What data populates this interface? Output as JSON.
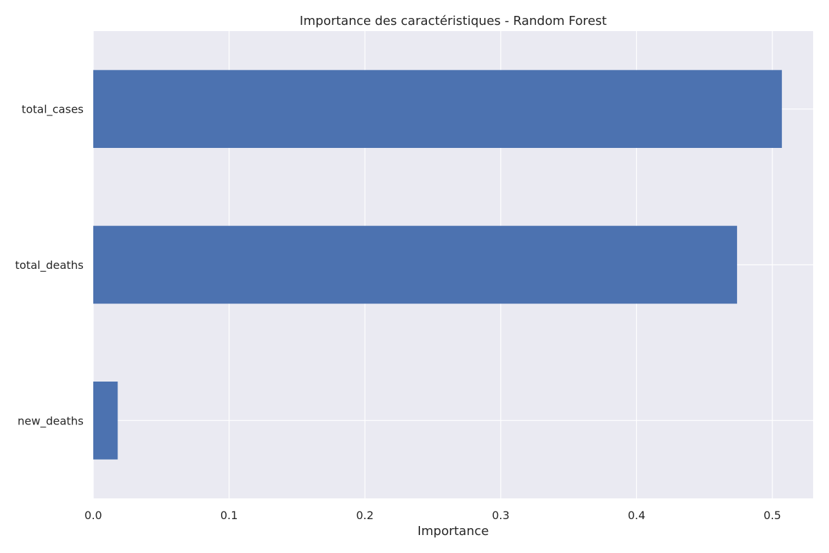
{
  "chart_data": {
    "type": "bar",
    "orientation": "horizontal",
    "title": "Importance des caractéristiques - Random Forest",
    "xlabel": "Importance",
    "ylabel": "",
    "categories": [
      "new_deaths",
      "total_deaths",
      "total_cases"
    ],
    "values": [
      0.018,
      0.474,
      0.507
    ],
    "xlim": [
      0,
      0.53
    ],
    "xticks": [
      0.0,
      0.1,
      0.2,
      0.3,
      0.4,
      0.5
    ],
    "xtick_labels": [
      "0.0",
      "0.1",
      "0.2",
      "0.3",
      "0.4",
      "0.5"
    ],
    "grid": true,
    "legend": "none",
    "colors": {
      "bar": "#4c72b0",
      "plot_background": "#eaeaf2",
      "grid": "#ffffff",
      "text": "#262626"
    }
  }
}
